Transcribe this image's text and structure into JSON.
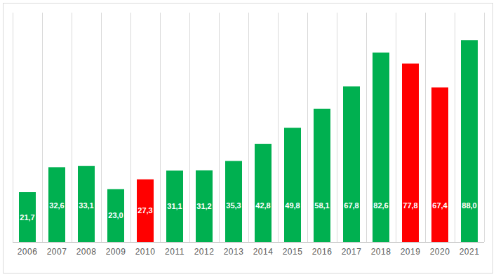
{
  "chart_data": {
    "type": "bar",
    "categories": [
      "2006",
      "2007",
      "2008",
      "2009",
      "2010",
      "2011",
      "2012",
      "2013",
      "2014",
      "2015",
      "2016",
      "2017",
      "2018",
      "2019",
      "2020",
      "2021"
    ],
    "values": [
      21.7,
      32.6,
      33.1,
      23.0,
      27.3,
      31.1,
      31.2,
      35.3,
      42.8,
      49.8,
      58.1,
      67.8,
      82.6,
      77.8,
      67.4,
      88.0
    ],
    "value_labels": [
      "21,7",
      "32,6",
      "33,1",
      "23,0",
      "27,3",
      "31,1",
      "31,2",
      "35,3",
      "42,8",
      "49,8",
      "58,1",
      "67,8",
      "82,6",
      "77,8",
      "67,4",
      "88,0"
    ],
    "colors": [
      "#00b050",
      "#00b050",
      "#00b050",
      "#00b050",
      "#ff0000",
      "#00b050",
      "#00b050",
      "#00b050",
      "#00b050",
      "#00b050",
      "#00b050",
      "#00b050",
      "#00b050",
      "#ff0000",
      "#ff0000",
      "#00b050"
    ],
    "ylim": [
      0,
      100
    ],
    "grid": true,
    "data_labels": true,
    "tick_labels": "x"
  }
}
